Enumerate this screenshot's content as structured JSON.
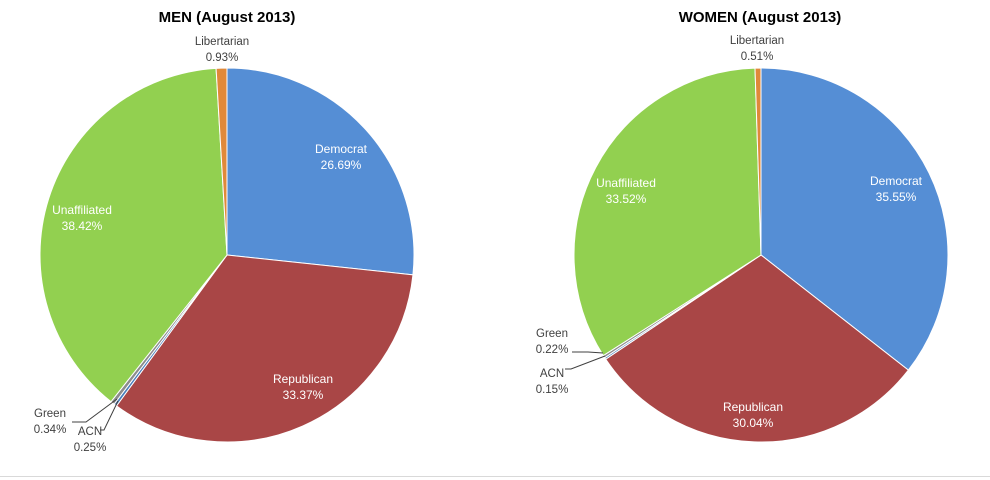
{
  "chart_data": [
    {
      "type": "pie",
      "title": "MEN (August 2013)",
      "slices": [
        {
          "label": "Democrat",
          "value_text": "26.69%",
          "value": 26.69,
          "color": "#558ed5"
        },
        {
          "label": "Republican",
          "value_text": "33.37%",
          "value": 33.37,
          "color": "#a94646"
        },
        {
          "label": "ACN",
          "value_text": "0.25%",
          "value": 0.25,
          "color": "#4a7ebb"
        },
        {
          "label": "Green",
          "value_text": "0.34%",
          "value": 0.34,
          "color": "#8c8c8c"
        },
        {
          "label": "Unaffiliated",
          "value_text": "38.42%",
          "value": 38.42,
          "color": "#92d050"
        },
        {
          "label": "Libertarian",
          "value_text": "0.93%",
          "value": 0.93,
          "color": "#e0893a"
        }
      ]
    },
    {
      "type": "pie",
      "title": "WOMEN (August 2013)",
      "slices": [
        {
          "label": "Democrat",
          "value_text": "35.55%",
          "value": 35.55,
          "color": "#558ed5"
        },
        {
          "label": "Republican",
          "value_text": "30.04%",
          "value": 30.04,
          "color": "#a94646"
        },
        {
          "label": "ACN",
          "value_text": "0.15%",
          "value": 0.15,
          "color": "#4a7ebb"
        },
        {
          "label": "Green",
          "value_text": "0.22%",
          "value": 0.22,
          "color": "#8c8c8c"
        },
        {
          "label": "Unaffiliated",
          "value_text": "33.52%",
          "value": 33.52,
          "color": "#92d050"
        },
        {
          "label": "Libertarian",
          "value_text": "0.51%",
          "value": 0.51,
          "color": "#e0893a"
        }
      ]
    }
  ]
}
